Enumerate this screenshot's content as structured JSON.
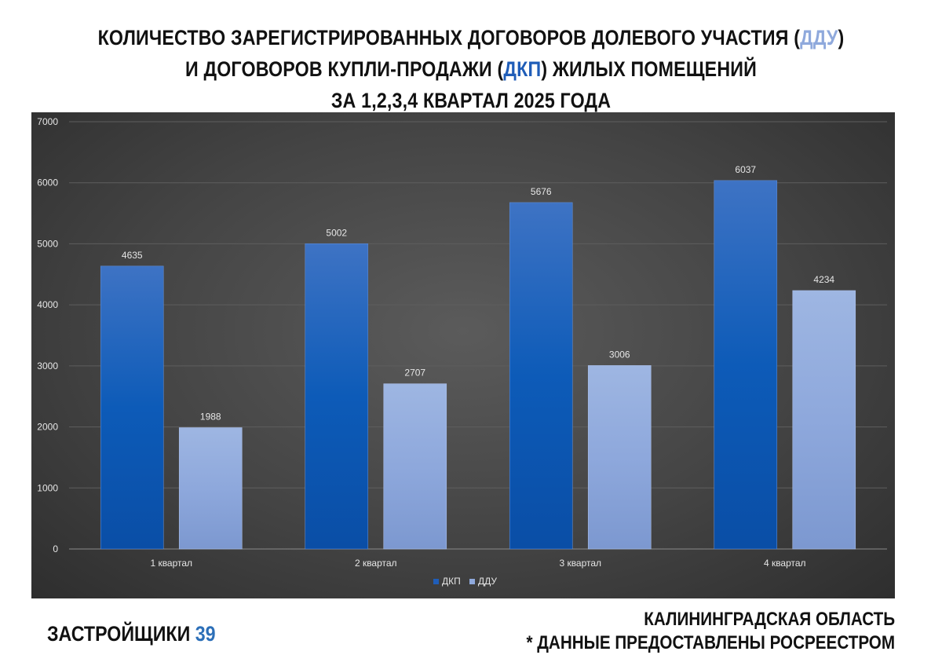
{
  "title": {
    "line1_pre": "КОЛИЧЕСТВО ЗАРЕГИСТРИРОВАННЫХ ДОГОВОРОВ ДОЛЕВОГО УЧАСТИЯ (",
    "line1_hl": "ДДУ",
    "line1_post": ")",
    "line2_pre": "И ДОГОВОРОВ КУПЛИ-ПРОДАЖИ (",
    "line2_hl": "ДКП",
    "line2_post": ") ЖИЛЫХ ПОМЕЩЕНИЙ",
    "line3": "ЗА 1,2,3,4 КВАРТАЛ 2025 ГОДА"
  },
  "colors": {
    "dkp": "#1F5DB8",
    "ddu": "#8FA9DC",
    "chart_bg": "#444444"
  },
  "chart_data": {
    "type": "bar",
    "categories": [
      "1 квартал",
      "2 квартал",
      "3 квартал",
      "4 квартал"
    ],
    "series": [
      {
        "name": "ДКП",
        "values": [
          4635,
          5002,
          5676,
          6037
        ]
      },
      {
        "name": "ДДУ",
        "values": [
          1988,
          2707,
          3006,
          4234
        ]
      }
    ],
    "ylim": [
      0,
      7000
    ],
    "yticks": [
      0,
      1000,
      2000,
      3000,
      4000,
      5000,
      6000,
      7000
    ],
    "grid": true,
    "legend": "bottom",
    "data_labels": true
  },
  "footer": {
    "brand_pre": "ЗАСТРОЙЩИКИ ",
    "brand_num": "39",
    "region": "КАЛИНИНГРАДСКАЯ ОБЛАСТЬ",
    "source": "* ДАННЫЕ ПРЕДОСТАВЛЕНЫ РОСРЕЕСТРОМ"
  }
}
